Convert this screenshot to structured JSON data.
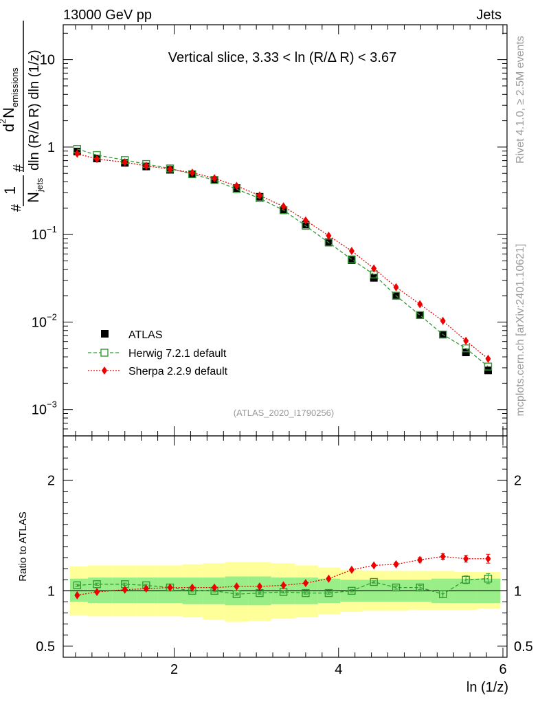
{
  "header": {
    "energy_label": "13000 GeV pp",
    "process_label": "Jets"
  },
  "side_labels": {
    "rivet": "Rivet 4.1.0, ≥ 2.5M events",
    "mcplots": "mcplots.cern.ch [arXiv:2401.10621]"
  },
  "chart_data": {
    "type": "line",
    "title": "Vertical slice, 3.33 < ln (R/Δ R) < 3.67",
    "analysis_label": "(ATLAS_2020_I1790256)",
    "xlabel": "ln (1/z)",
    "xlim": [
      0.65,
      6.05
    ],
    "x_ticks": [
      {
        "value": 2,
        "label": "2"
      },
      {
        "value": 4,
        "label": "4"
      },
      {
        "value": 6,
        "label": "6"
      }
    ],
    "main_panel": {
      "ylabel": "#frac{1}{N_{jets}}#frac{d² N_{emissions}}{dln (R/Δ R) dln (1/z)}",
      "ylabel_parts": {
        "one": "1",
        "njets": "N",
        "njets_sub": "jets",
        "d2": "d",
        "d2_sup": "2",
        "nemis": "N",
        "nemis_sub": "emissions",
        "denom": "dln (R/Δ R) dln (1/z)",
        "hash": "#"
      },
      "yscale": "log",
      "ylim": [
        0.0005,
        25
      ],
      "y_ticks": [
        {
          "value": 10,
          "base": "10",
          "exp": ""
        },
        {
          "value": 1,
          "base": "1",
          "exp": ""
        },
        {
          "value": 0.1,
          "base": "10",
          "exp": "−1"
        },
        {
          "value": 0.01,
          "base": "10",
          "exp": "−2"
        },
        {
          "value": 0.001,
          "base": "10",
          "exp": "−3"
        }
      ],
      "legend": [
        {
          "label": "ATLAS",
          "marker": "square-filled",
          "color": "#000000"
        },
        {
          "label": "Herwig 7.2.1 default",
          "marker": "square-open",
          "color": "#339933"
        },
        {
          "label": "Sherpa 2.2.9 default",
          "marker": "diamond",
          "color": "#ee0000"
        }
      ],
      "series": [
        {
          "name": "ATLAS",
          "x": [
            0.82,
            1.06,
            1.4,
            1.66,
            1.95,
            2.22,
            2.49,
            2.76,
            3.04,
            3.33,
            3.6,
            3.88,
            4.16,
            4.43,
            4.7,
            4.99,
            5.27,
            5.55,
            5.82
          ],
          "y": [
            0.89,
            0.74,
            0.66,
            0.6,
            0.55,
            0.49,
            0.42,
            0.34,
            0.27,
            0.19,
            0.13,
            0.082,
            0.051,
            0.032,
            0.02,
            0.012,
            0.0072,
            0.0045,
            0.0028
          ]
        },
        {
          "name": "Herwig 7.2.1 default",
          "x": [
            0.82,
            1.06,
            1.4,
            1.66,
            1.95,
            2.22,
            2.49,
            2.76,
            3.04,
            3.33,
            3.6,
            3.88,
            4.16,
            4.43,
            4.7,
            4.99,
            5.27,
            5.55,
            5.82
          ],
          "y": [
            0.95,
            0.81,
            0.71,
            0.64,
            0.57,
            0.49,
            0.42,
            0.33,
            0.26,
            0.19,
            0.126,
            0.081,
            0.052,
            0.035,
            0.02,
            0.012,
            0.0072,
            0.005,
            0.0031
          ]
        },
        {
          "name": "Sherpa 2.2.9 default",
          "x": [
            0.82,
            1.06,
            1.4,
            1.66,
            1.95,
            2.22,
            2.49,
            2.76,
            3.04,
            3.33,
            3.6,
            3.88,
            4.16,
            4.43,
            4.7,
            4.99,
            5.27,
            5.55,
            5.82
          ],
          "y": [
            0.84,
            0.73,
            0.67,
            0.61,
            0.56,
            0.51,
            0.44,
            0.36,
            0.28,
            0.21,
            0.145,
            0.097,
            0.065,
            0.041,
            0.025,
            0.016,
            0.0103,
            0.0061,
            0.0038
          ]
        }
      ]
    },
    "ratio_panel": {
      "ylabel": "Ratio to ATLAS",
      "ylim": [
        0.4,
        2.4
      ],
      "y_ticks": [
        {
          "value": 0.5,
          "label": "0.5"
        },
        {
          "value": 1,
          "label": "1"
        },
        {
          "value": 2,
          "label": "2"
        }
      ],
      "bin_edges": [
        0.65,
        0.95,
        1.25,
        1.55,
        1.8,
        2.1,
        2.35,
        2.62,
        2.9,
        3.18,
        3.47,
        3.75,
        4.02,
        4.29,
        4.57,
        4.85,
        5.13,
        5.41,
        5.69,
        5.97
      ],
      "band_stat": [
        [
          0.9,
          1.11
        ],
        [
          0.89,
          1.12
        ],
        [
          0.89,
          1.12
        ],
        [
          0.89,
          1.12
        ],
        [
          0.89,
          1.12
        ],
        [
          0.88,
          1.12
        ],
        [
          0.88,
          1.12
        ],
        [
          0.87,
          1.13
        ],
        [
          0.87,
          1.13
        ],
        [
          0.88,
          1.12
        ],
        [
          0.88,
          1.12
        ],
        [
          0.89,
          1.11
        ],
        [
          0.9,
          1.1
        ],
        [
          0.9,
          1.1
        ],
        [
          0.9,
          1.1
        ],
        [
          0.9,
          1.1
        ],
        [
          0.89,
          1.11
        ],
        [
          0.89,
          1.11
        ],
        [
          0.89,
          1.11
        ]
      ],
      "band_total": [
        [
          0.78,
          1.22
        ],
        [
          0.77,
          1.23
        ],
        [
          0.77,
          1.23
        ],
        [
          0.77,
          1.23
        ],
        [
          0.77,
          1.23
        ],
        [
          0.76,
          1.24
        ],
        [
          0.74,
          1.25
        ],
        [
          0.72,
          1.26
        ],
        [
          0.73,
          1.26
        ],
        [
          0.75,
          1.25
        ],
        [
          0.76,
          1.23
        ],
        [
          0.79,
          1.21
        ],
        [
          0.81,
          1.19
        ],
        [
          0.82,
          1.18
        ],
        [
          0.82,
          1.18
        ],
        [
          0.83,
          1.18
        ],
        [
          0.83,
          1.18
        ],
        [
          0.83,
          1.17
        ],
        [
          0.84,
          1.17
        ]
      ],
      "series": [
        {
          "name": "Herwig 7.2.1 default",
          "x": [
            0.82,
            1.06,
            1.4,
            1.66,
            1.95,
            2.22,
            2.49,
            2.76,
            3.04,
            3.33,
            3.6,
            3.88,
            4.16,
            4.43,
            4.7,
            4.99,
            5.27,
            5.55,
            5.82
          ],
          "y": [
            1.05,
            1.06,
            1.06,
            1.05,
            1.03,
            1.0,
            1.0,
            0.97,
            0.98,
            0.99,
            0.98,
            0.98,
            1.0,
            1.08,
            1.03,
            1.03,
            0.97,
            1.1,
            1.11
          ],
          "err": [
            0.01,
            0.01,
            0.01,
            0.01,
            0.01,
            0.01,
            0.01,
            0.01,
            0.01,
            0.01,
            0.01,
            0.01,
            0.01,
            0.01,
            0.015,
            0.02,
            0.03,
            0.035,
            0.045
          ]
        },
        {
          "name": "Sherpa 2.2.9 default",
          "x": [
            0.82,
            1.06,
            1.4,
            1.66,
            1.95,
            2.22,
            2.49,
            2.76,
            3.04,
            3.33,
            3.6,
            3.88,
            4.16,
            4.43,
            4.7,
            4.99,
            5.27,
            5.55,
            5.82
          ],
          "y": [
            0.96,
            0.99,
            1.01,
            1.02,
            1.03,
            1.03,
            1.03,
            1.04,
            1.04,
            1.05,
            1.07,
            1.11,
            1.19,
            1.23,
            1.24,
            1.28,
            1.31,
            1.29,
            1.29
          ],
          "err": [
            0.01,
            0.01,
            0.01,
            0.01,
            0.01,
            0.01,
            0.01,
            0.01,
            0.01,
            0.01,
            0.01,
            0.01,
            0.01,
            0.01,
            0.015,
            0.02,
            0.025,
            0.03,
            0.04
          ]
        }
      ]
    },
    "colors": {
      "herwig": "#339933",
      "sherpa": "#ee0000",
      "atlas": "#000000",
      "band_stat": "#99ee88",
      "band_total": "#ffff99"
    }
  }
}
